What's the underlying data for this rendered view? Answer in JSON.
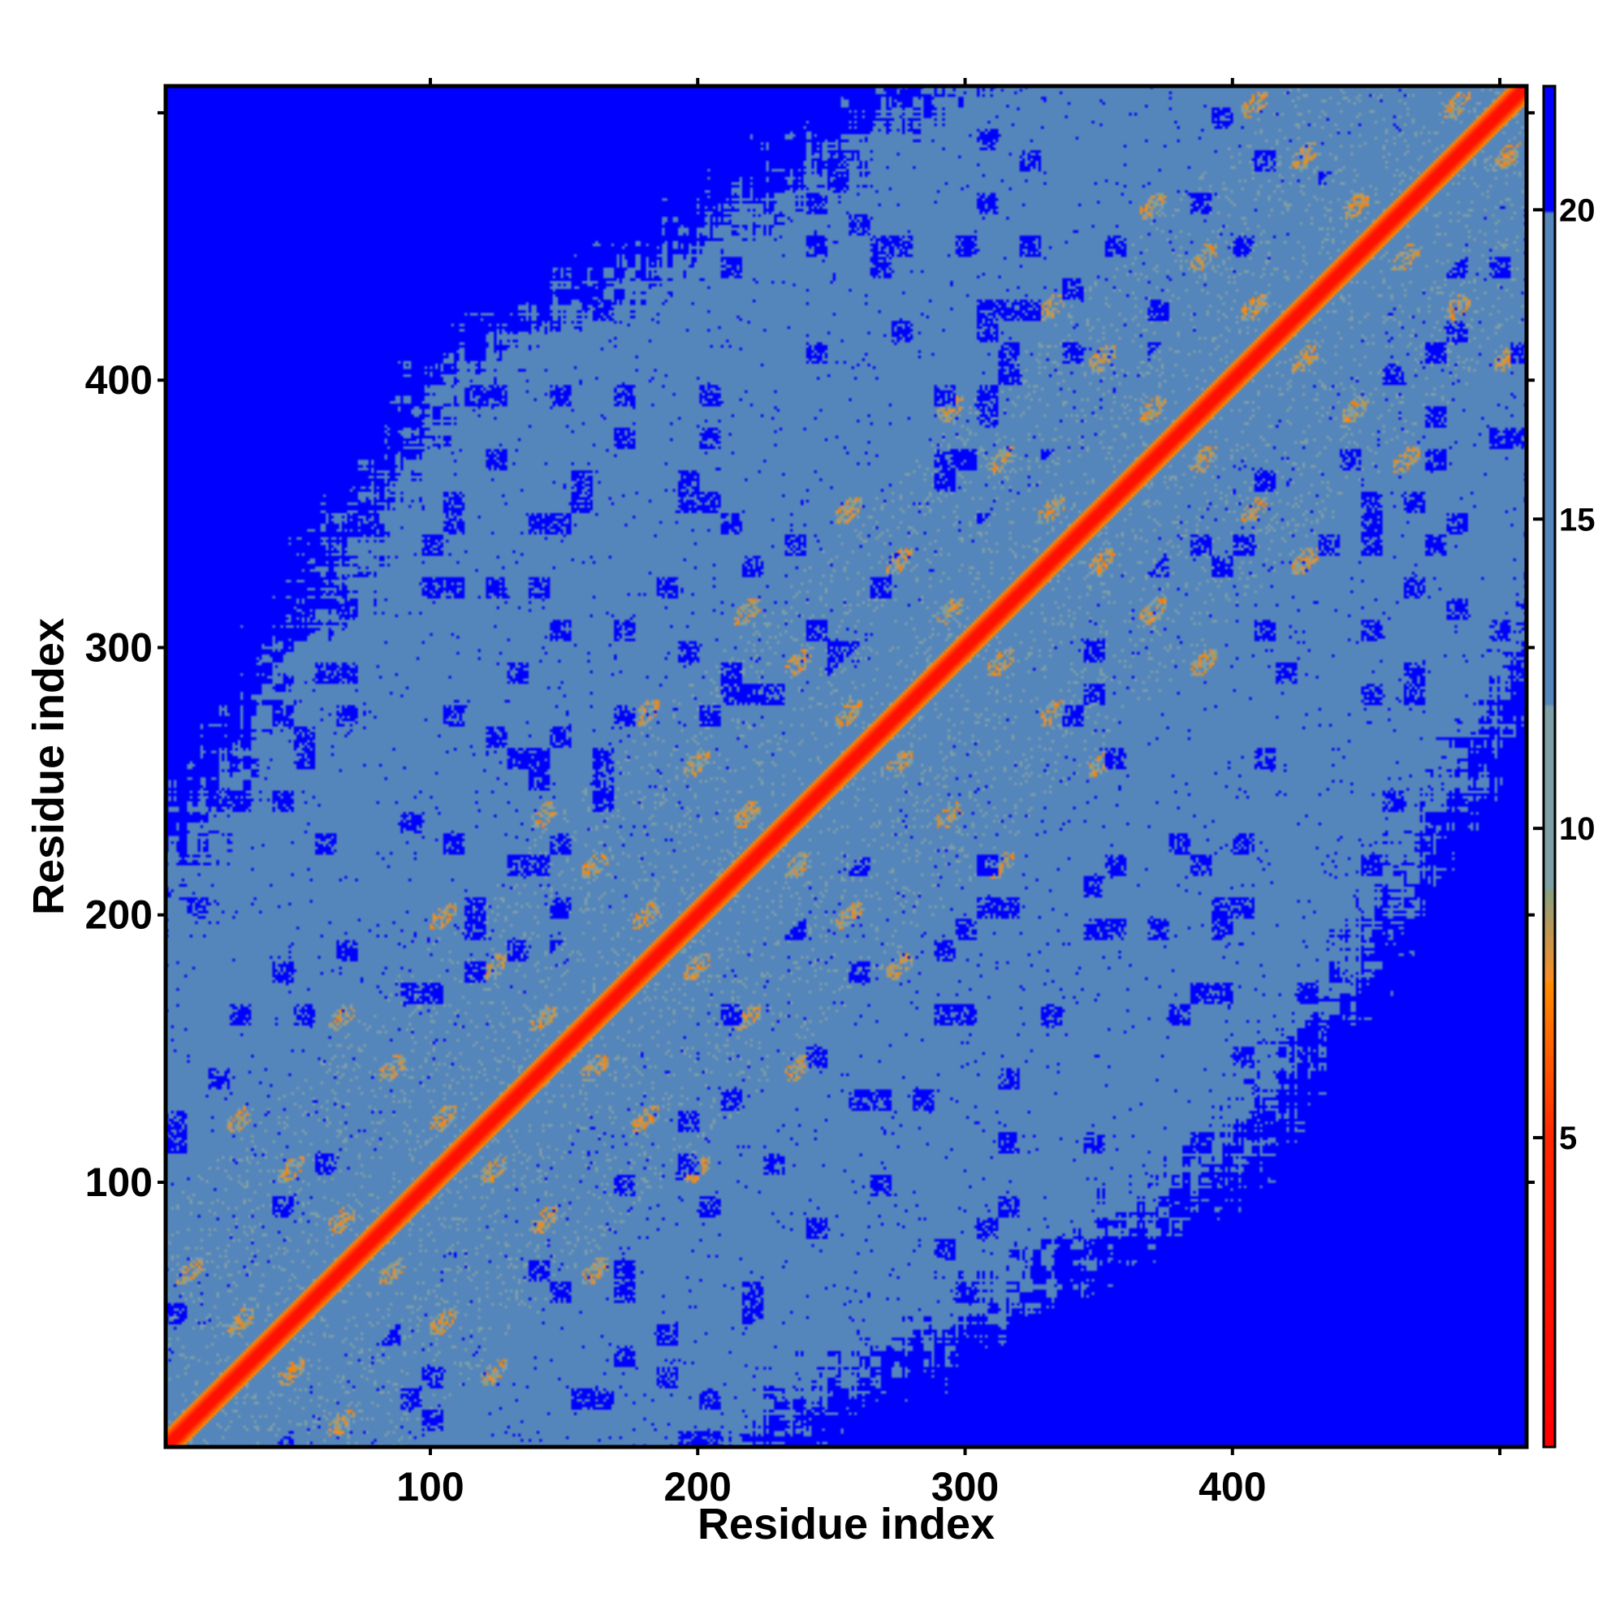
{
  "chart_data": {
    "type": "heatmap",
    "title": "",
    "xlabel": "Residue index",
    "ylabel": "Residue index",
    "xlim": [
      1,
      510
    ],
    "ylim": [
      1,
      510
    ],
    "x_ticks": [
      100,
      200,
      300,
      400
    ],
    "y_ticks": [
      100,
      200,
      300,
      400
    ],
    "grid": false,
    "colorbar": {
      "placement": "right",
      "range": [
        0,
        22
      ],
      "ticks": [
        5,
        10,
        15,
        20
      ],
      "colors": [
        "#ff0000",
        "#ff8c00",
        "#7f9fa7",
        "#5586bb",
        "#0000ff"
      ]
    },
    "description": "symmetric residue-residue distance map with diagonal band"
  }
}
